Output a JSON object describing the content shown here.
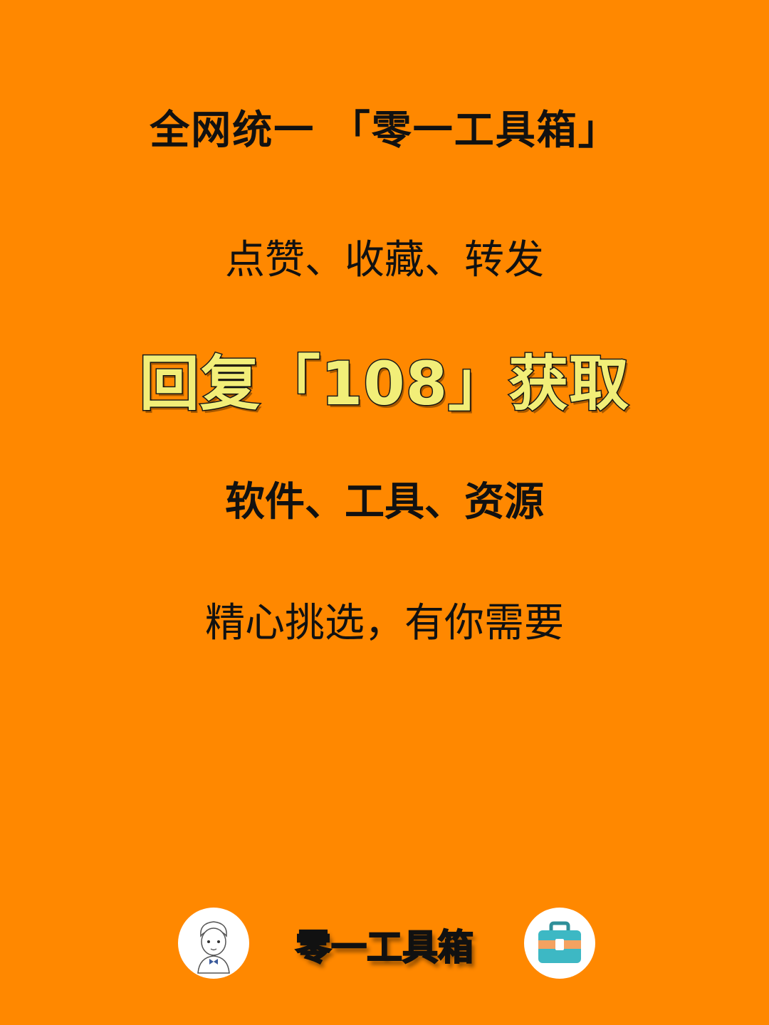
{
  "poster": {
    "headline": "全网统一 「零一工具箱」",
    "actions": "点赞、收藏、转发",
    "cta": "回复「108」获取",
    "categories": "软件、工具、资源",
    "tagline": "精心挑选，有你需要"
  },
  "footer": {
    "brand": "零一工具箱",
    "left_icon": "avatar-cartoon-icon",
    "right_icon": "toolbox-icon"
  },
  "colors": {
    "background": "#FF8800",
    "cta_fill": "#F2EE78",
    "text": "#111111",
    "toolbox_body": "#3DB8C4",
    "toolbox_band": "#F4A261"
  }
}
